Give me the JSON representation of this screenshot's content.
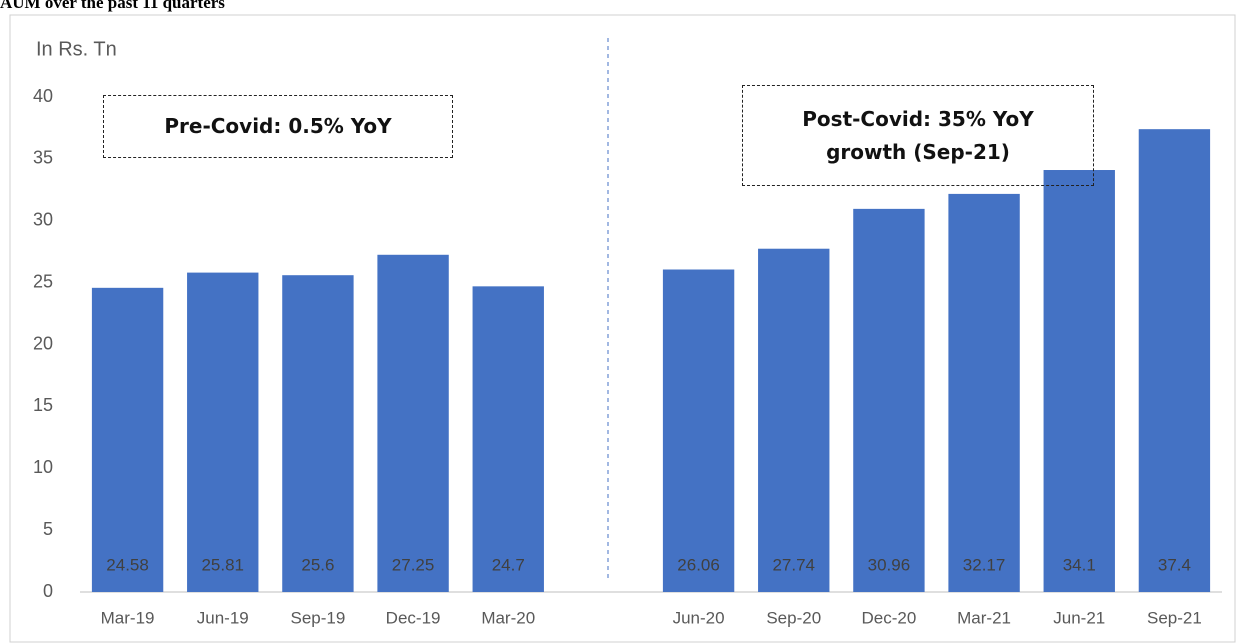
{
  "chart_data": {
    "type": "bar",
    "title": "AUM over the past 11 quarters",
    "y_label": "In Rs. Tn",
    "annotations": [
      "Pre-Covid: 0.5% YoY",
      "Post-Covid: 35% YoY growth (Sep-21)"
    ],
    "categories": [
      "Mar-19",
      "Jun-19",
      "Sep-19",
      "Dec-19",
      "Mar-20",
      null,
      "Jun-20",
      "Sep-20",
      "Dec-20",
      "Mar-21",
      "Jun-21",
      "Sep-21"
    ],
    "values": [
      24.58,
      25.81,
      25.6,
      27.25,
      24.7,
      null,
      26.06,
      27.74,
      30.96,
      32.17,
      34.1,
      37.4
    ],
    "color": "#4472c4",
    "ylim": [
      0,
      40
    ],
    "yticks": [
      0,
      5,
      10,
      15,
      20,
      25,
      30,
      35,
      40
    ],
    "grid": false
  }
}
